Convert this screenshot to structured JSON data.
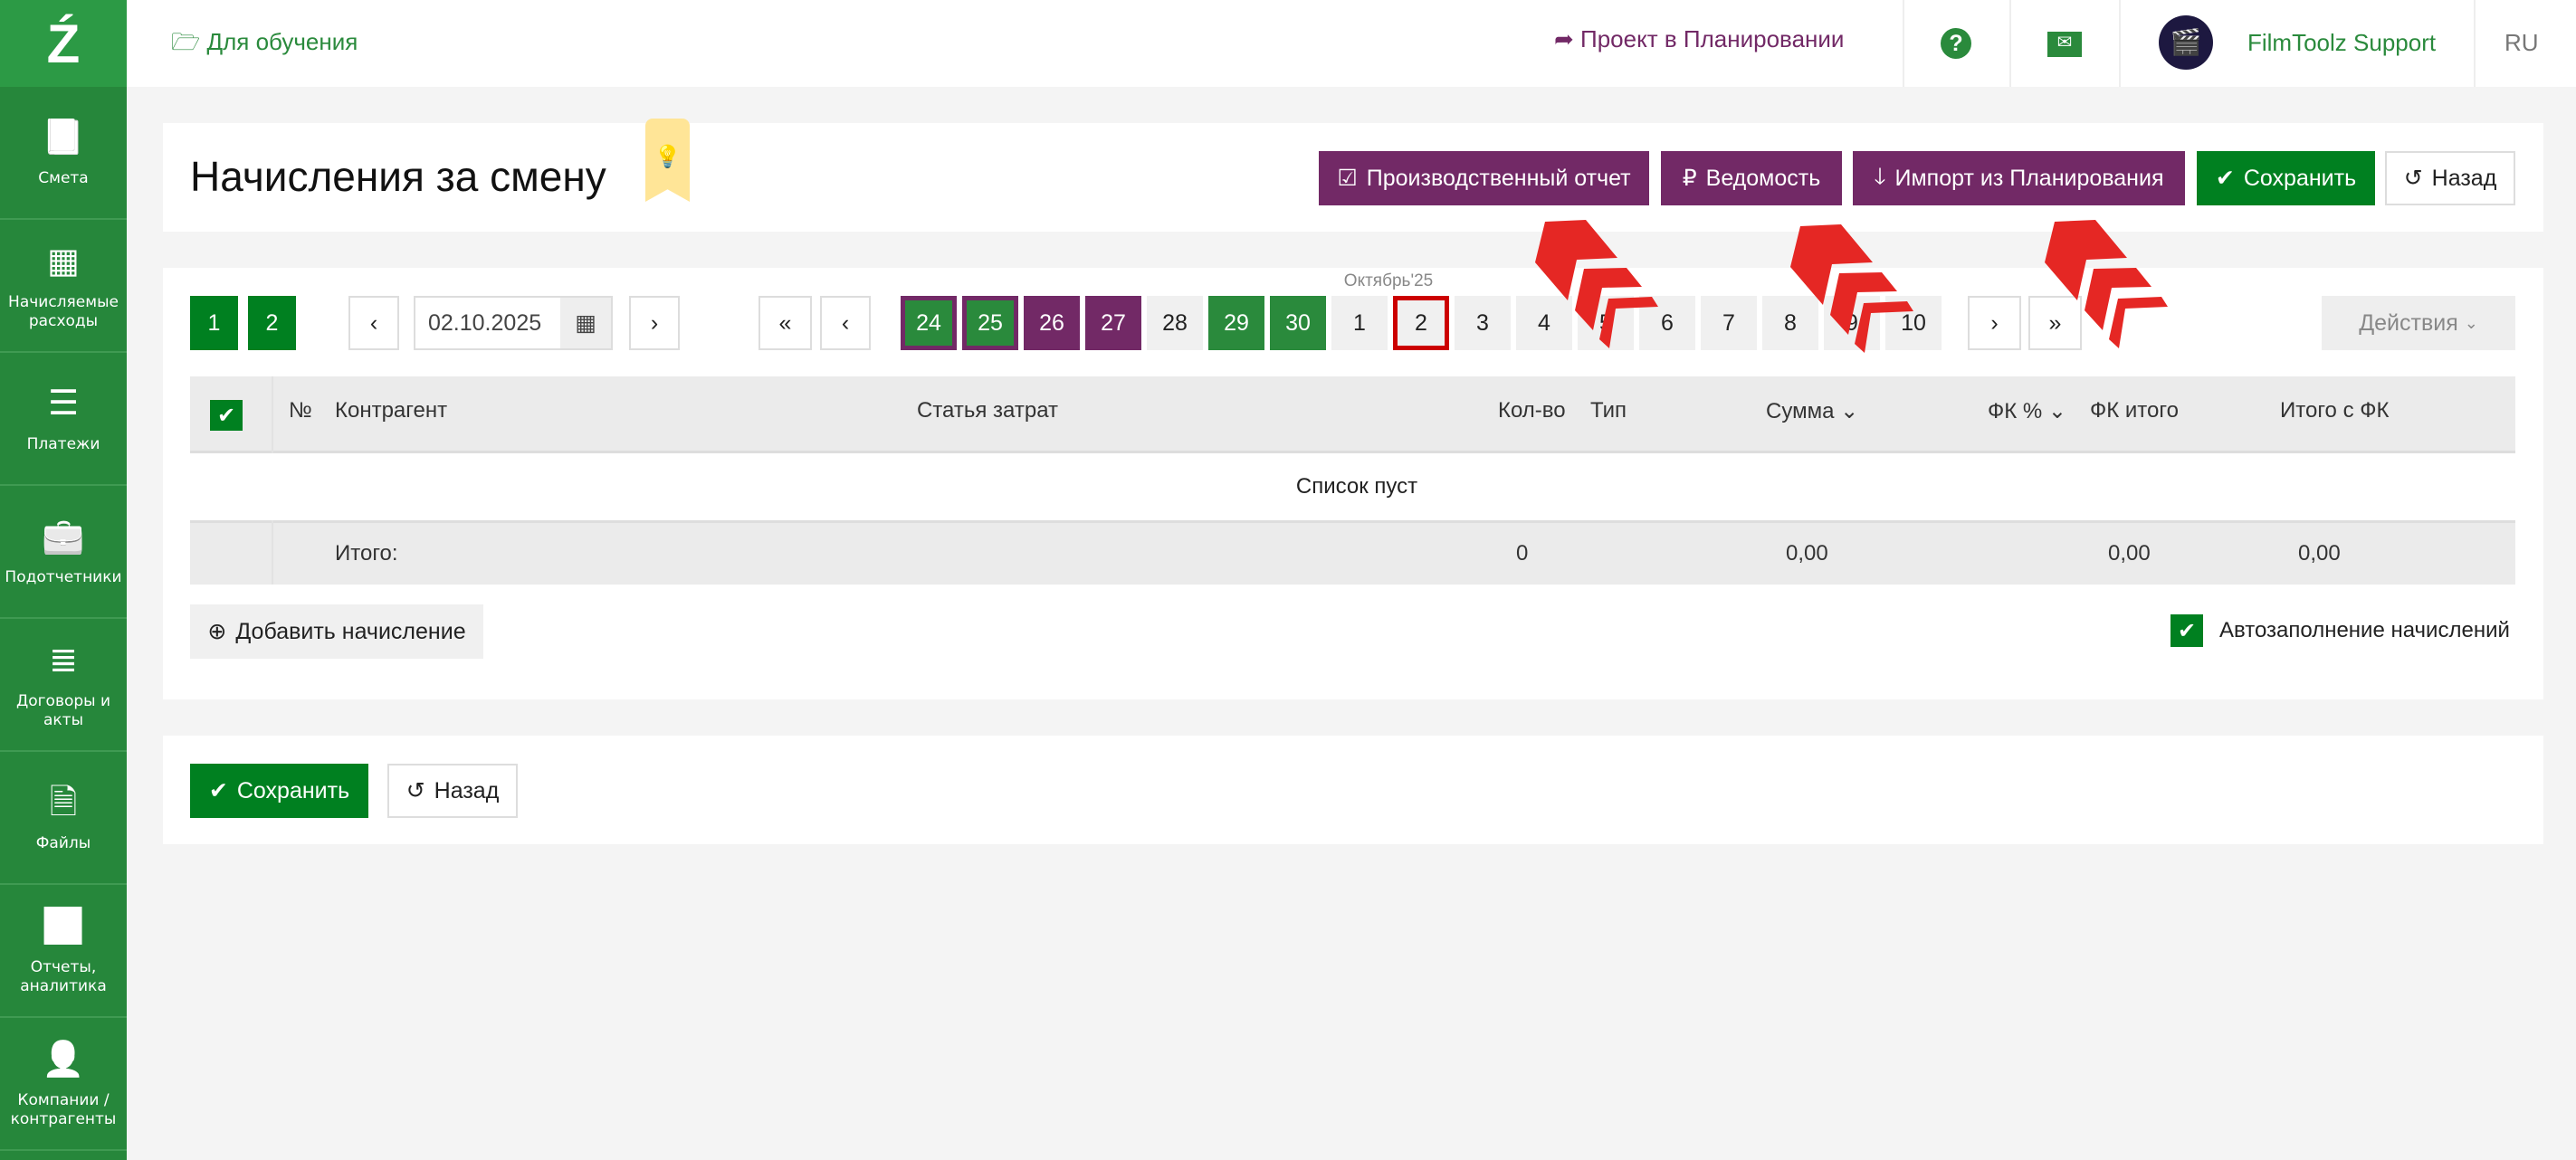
{
  "colors": {
    "brand_green": "#2c9a45",
    "sidebar": "#26873b",
    "accent_purple": "#722966",
    "save_green": "#008020",
    "selected_day_border": "#cc0000"
  },
  "sidebar": {
    "items": [
      {
        "label": "Смета",
        "icon": "book-icon"
      },
      {
        "label": "Начисляемые расходы",
        "icon": "calendar-icon"
      },
      {
        "label": "Платежи",
        "icon": "list-alt-icon"
      },
      {
        "label": "Подотчетники",
        "icon": "briefcase-icon"
      },
      {
        "label": "Договоры и акты",
        "icon": "list-icon"
      },
      {
        "label": "Файлы",
        "icon": "file-icon"
      },
      {
        "label": "Отчеты, аналитика",
        "icon": "bar-chart-icon"
      },
      {
        "label": "Компании / контрагенты",
        "icon": "user-icon"
      }
    ]
  },
  "header": {
    "project": "Для обучения",
    "planning_link": "Проект в Планировании",
    "user": "FilmToolz Support",
    "lang": "RU"
  },
  "page": {
    "title": "Начисления за смену"
  },
  "toolbar": {
    "report": "Производственный отчет",
    "statement": "Ведомость",
    "import": "Импорт из Планирования",
    "save": "Сохранить",
    "back": "Назад"
  },
  "pager": {
    "pages": [
      "1",
      "2"
    ],
    "date": "02.10.2025",
    "month": "Октябрь'25",
    "first": "«",
    "prev": "‹",
    "next": "›",
    "last": "»",
    "actions": "Действия"
  },
  "days": [
    {
      "d": "24",
      "s": "purple-green"
    },
    {
      "d": "25",
      "s": "purple-green"
    },
    {
      "d": "26",
      "s": "purple"
    },
    {
      "d": "27",
      "s": "purple"
    },
    {
      "d": "28",
      "s": "gray"
    },
    {
      "d": "29",
      "s": "green"
    },
    {
      "d": "30",
      "s": "green"
    },
    {
      "d": "1",
      "s": "gray"
    },
    {
      "d": "2",
      "s": "selected"
    },
    {
      "d": "3",
      "s": "gray"
    },
    {
      "d": "4",
      "s": "gray"
    },
    {
      "d": "5",
      "s": "gray"
    },
    {
      "d": "6",
      "s": "gray"
    },
    {
      "d": "7",
      "s": "gray"
    },
    {
      "d": "8",
      "s": "gray"
    },
    {
      "d": "9",
      "s": "gray"
    },
    {
      "d": "10",
      "s": "gray"
    }
  ],
  "table": {
    "columns": [
      "№",
      "Контрагент",
      "Статья затрат",
      "Кол-во",
      "Тип",
      "Сумма",
      "ФК %",
      "ФК итого",
      "Итого с ФК"
    ],
    "empty": "Список пуст",
    "totals": {
      "label": "Итого:",
      "qty": "0",
      "sum": "0,00",
      "fk_total": "0,00",
      "total_fk": "0,00"
    }
  },
  "add_button": "Добавить начисление",
  "autofill": {
    "label": "Автозаполнение начислений",
    "checked": true
  },
  "footer": {
    "save": "Сохранить",
    "back": "Назад"
  }
}
